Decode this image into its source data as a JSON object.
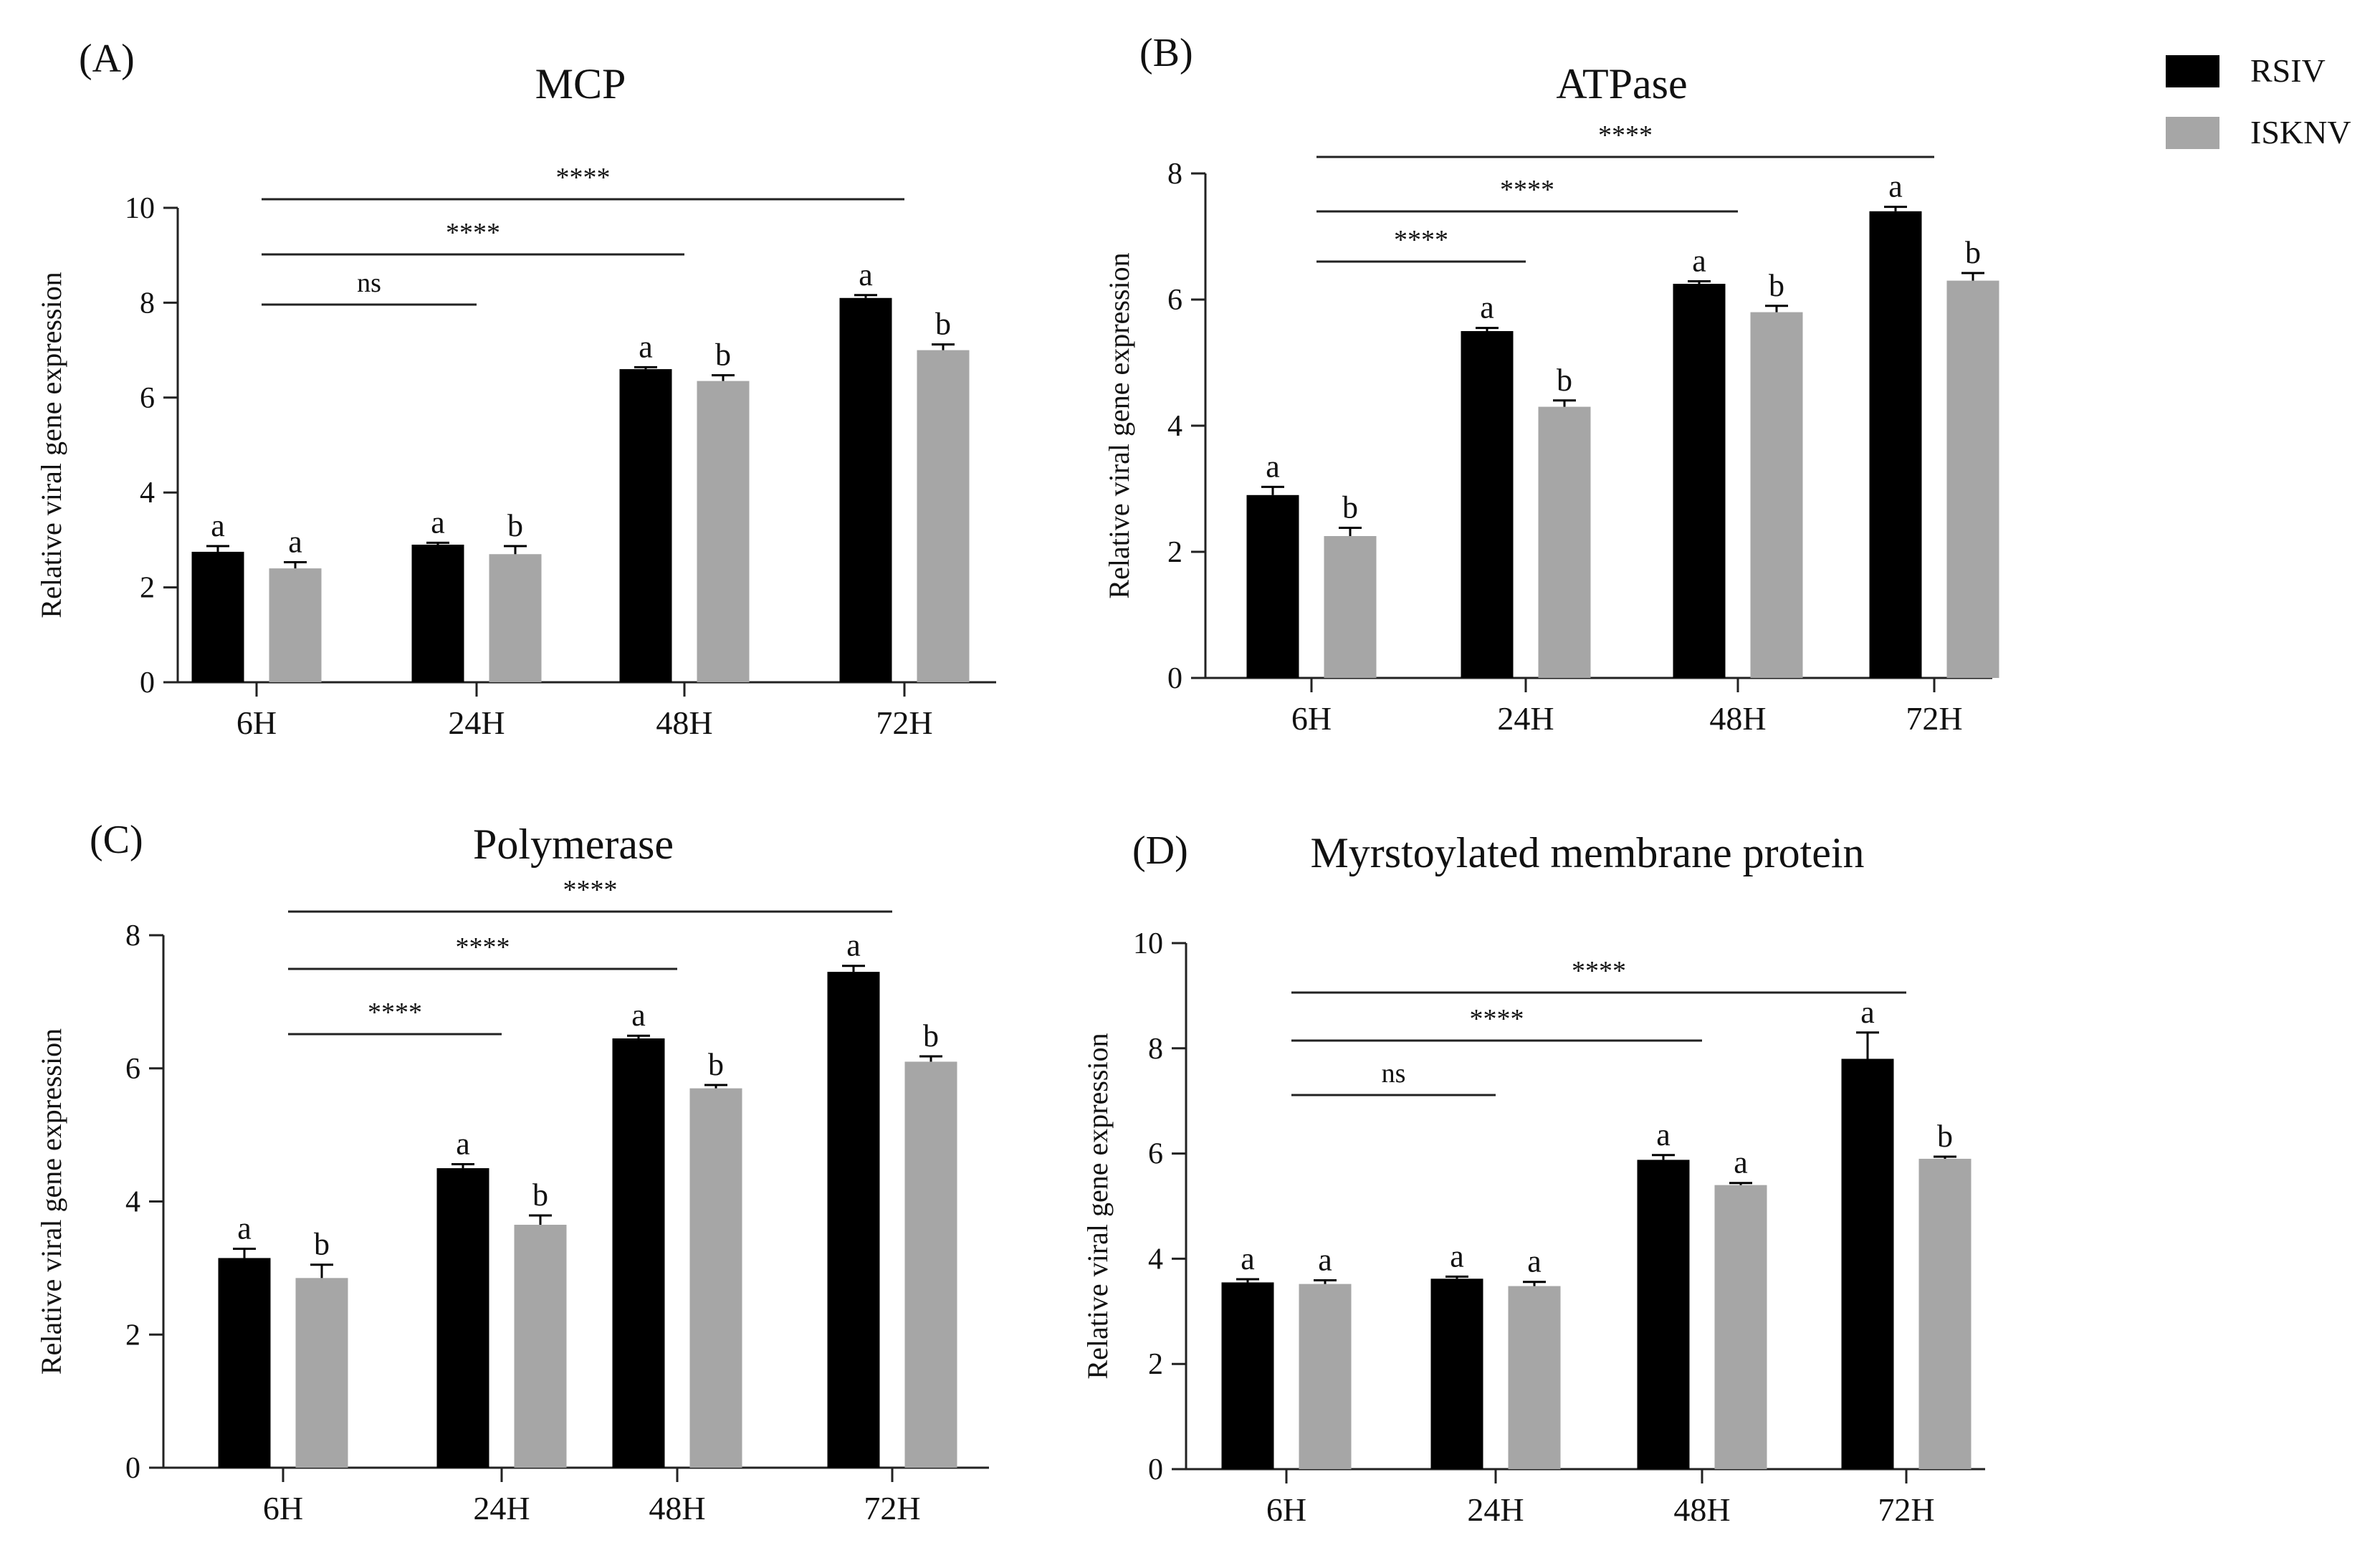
{
  "legend": {
    "items": [
      {
        "name": "RSIV",
        "color": "#000000"
      },
      {
        "name": "ISKNV",
        "color": "#a6a6a6"
      }
    ]
  },
  "chart_data": [
    {
      "type": "bar",
      "panel_label": "(A)",
      "title": "MCP",
      "ylabel": "Relative viral gene expression",
      "xlabel": "",
      "categories": [
        "6H",
        "24H",
        "48H",
        "72H"
      ],
      "ylim": [
        0,
        10
      ],
      "yticks": [
        "0",
        "2",
        "4",
        "6",
        "8",
        "10"
      ],
      "series": [
        {
          "name": "RSIV",
          "values": [
            2.75,
            2.9,
            6.6,
            8.1
          ],
          "errors": [
            0.12,
            0.04,
            0.04,
            0.06
          ],
          "letters": [
            "a",
            "a",
            "a",
            "a"
          ]
        },
        {
          "name": "ISKNV",
          "values": [
            2.4,
            2.7,
            6.35,
            7.0
          ],
          "errors": [
            0.13,
            0.17,
            0.12,
            0.12
          ],
          "letters": [
            "a",
            "b",
            "b",
            "b"
          ]
        }
      ],
      "comparisons": [
        {
          "from": "6H",
          "to": "24H",
          "label": "ns"
        },
        {
          "from": "6H",
          "to": "48H",
          "label": "****"
        },
        {
          "from": "6H",
          "to": "72H",
          "label": "****"
        }
      ]
    },
    {
      "type": "bar",
      "panel_label": "(B)",
      "title": "ATPase",
      "ylabel": "Relative viral gene expression",
      "xlabel": "",
      "categories": [
        "6H",
        "24H",
        "48H",
        "72H"
      ],
      "ylim": [
        0,
        8
      ],
      "yticks": [
        "0",
        "2",
        "4",
        "6",
        "8"
      ],
      "series": [
        {
          "name": "RSIV",
          "values": [
            2.9,
            5.5,
            6.25,
            7.4
          ],
          "errors": [
            0.13,
            0.05,
            0.04,
            0.07
          ],
          "letters": [
            "a",
            "a",
            "a",
            "a"
          ]
        },
        {
          "name": "ISKNV",
          "values": [
            2.25,
            4.3,
            5.8,
            6.3
          ],
          "errors": [
            0.13,
            0.1,
            0.1,
            0.12
          ],
          "letters": [
            "b",
            "b",
            "b",
            "b"
          ]
        }
      ],
      "comparisons": [
        {
          "from": "6H",
          "to": "24H",
          "label": "****"
        },
        {
          "from": "6H",
          "to": "48H",
          "label": "****"
        },
        {
          "from": "6H",
          "to": "72H",
          "label": "****"
        }
      ]
    },
    {
      "type": "bar",
      "panel_label": "(C)",
      "title": "Polymerase",
      "ylabel": "Relative viral gene expression",
      "xlabel": "",
      "categories": [
        "6H",
        "24H",
        "48H",
        "72H"
      ],
      "ylim": [
        0,
        8
      ],
      "yticks": [
        "0",
        "2",
        "4",
        "6",
        "8"
      ],
      "series": [
        {
          "name": "RSIV",
          "values": [
            3.15,
            4.5,
            6.45,
            7.45
          ],
          "errors": [
            0.14,
            0.06,
            0.04,
            0.09
          ],
          "letters": [
            "a",
            "a",
            "a",
            "a"
          ]
        },
        {
          "name": "ISKNV",
          "values": [
            2.85,
            3.65,
            5.7,
            6.1
          ],
          "errors": [
            0.2,
            0.14,
            0.05,
            0.08
          ],
          "letters": [
            "b",
            "b",
            "b",
            "b"
          ]
        }
      ],
      "comparisons": [
        {
          "from": "6H",
          "to": "24H",
          "label": "****"
        },
        {
          "from": "6H",
          "to": "48H",
          "label": "****"
        },
        {
          "from": "6H",
          "to": "72H",
          "label": "****"
        }
      ]
    },
    {
      "type": "bar",
      "panel_label": "(D)",
      "title": "Myrstoylated membrane protein",
      "ylabel": "Relative viral gene expression",
      "xlabel": "",
      "categories": [
        "6H",
        "24H",
        "48H",
        "72H"
      ],
      "ylim": [
        0,
        10
      ],
      "yticks": [
        "0",
        "2",
        "4",
        "6",
        "8",
        "10"
      ],
      "series": [
        {
          "name": "RSIV",
          "values": [
            3.55,
            3.62,
            5.88,
            7.8
          ],
          "errors": [
            0.06,
            0.04,
            0.09,
            0.5
          ],
          "letters": [
            "a",
            "a",
            "a",
            "a"
          ]
        },
        {
          "name": "ISKNV",
          "values": [
            3.52,
            3.48,
            5.4,
            5.9
          ],
          "errors": [
            0.07,
            0.08,
            0.04,
            0.04
          ],
          "letters": [
            "a",
            "a",
            "a",
            "b"
          ]
        }
      ],
      "comparisons": [
        {
          "from": "6H",
          "to": "24H",
          "label": "ns"
        },
        {
          "from": "6H",
          "to": "48H",
          "label": "****"
        },
        {
          "from": "6H",
          "to": "72H",
          "label": "****"
        }
      ]
    }
  ]
}
